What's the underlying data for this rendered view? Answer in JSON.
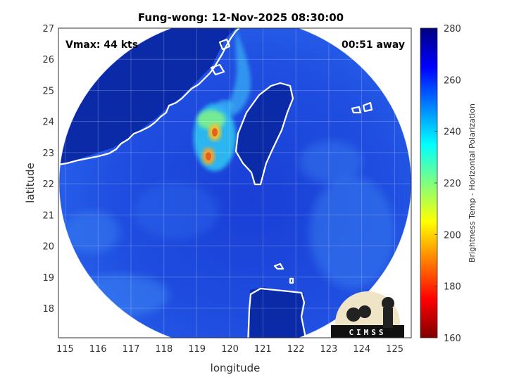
{
  "title": "Fung-wong: 12-Nov-2025 08:30:00",
  "xlabel": "longitude",
  "ylabel": "latitude",
  "vmax_label": "Vmax: 44 kts",
  "away_label": "00:51 away",
  "x_ticks": [
    "115",
    "116",
    "117",
    "118",
    "119",
    "120",
    "121",
    "122",
    "123",
    "124",
    "125"
  ],
  "y_ticks": [
    "27",
    "26",
    "25",
    "24",
    "23",
    "22",
    "21",
    "20",
    "19",
    "18"
  ],
  "colorbar": {
    "label": "Brightness Temp - Horizontal Polarization",
    "ticks": [
      "280",
      "260",
      "240",
      "220",
      "200",
      "180",
      "160"
    ],
    "min": 160,
    "max": 280,
    "colors": [
      "#7f0000",
      "#ff0000",
      "#ff8000",
      "#ffff00",
      "#80ff80",
      "#00ffff",
      "#0080ff",
      "#0000ff",
      "#00007f"
    ]
  },
  "logo": {
    "text": "CIMSS"
  },
  "map": {
    "lon_range": [
      114.8,
      125.5
    ],
    "lat_range": [
      17.05,
      27.0
    ],
    "swath_fill": "#1b45d8",
    "outside_fill": "#ffffff",
    "coast_color": "#ffffff"
  }
}
